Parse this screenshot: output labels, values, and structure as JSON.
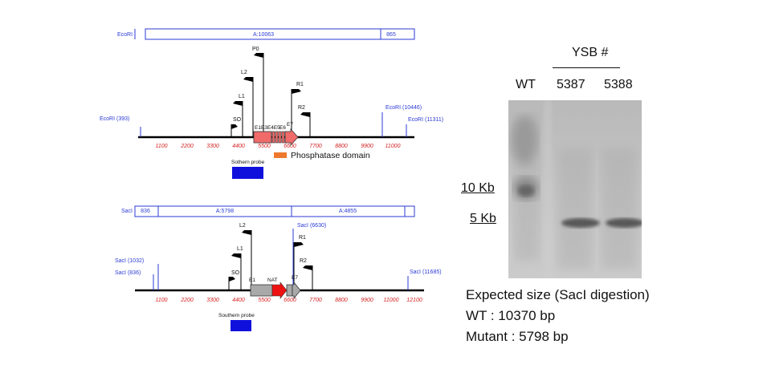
{
  "map_ecori": {
    "top_bar_label": "EcoRI",
    "top_bar_mid": "A:10063",
    "top_bar_right": "865",
    "site_left": "EcoRI (393)",
    "site_right1": "EcoRI (10446)",
    "site_right2": "EcoRI (11311)",
    "ticks": [
      "1100",
      "2200",
      "3300",
      "4400",
      "5500",
      "6600",
      "7700",
      "8800",
      "9900",
      "11000"
    ],
    "primers": [
      "P0",
      "L2",
      "L1",
      "SO",
      "R1",
      "R2"
    ],
    "exons": [
      "E1",
      "E3",
      "E4",
      "E5",
      "E6",
      "E7"
    ],
    "exon_combined": "E1E3E4E5",
    "domain_label": "Phosphatase domain",
    "probe_label": "Sothern probe"
  },
  "map_saci": {
    "top_bar_label": "SacI",
    "top_bar_left": "836",
    "top_bar_mid1": "A:5798",
    "top_bar_mid2": "A:4855",
    "site_left1": "SacI (1032)",
    "site_left2": "SacI (836)",
    "site_mid": "SacI (6630)",
    "site_right": "SacI (11685)",
    "ticks": [
      "1100",
      "2200",
      "3300",
      "4400",
      "5500",
      "6600",
      "7700",
      "8800",
      "9900",
      "11000",
      "12100"
    ],
    "primers": [
      "L2",
      "L1",
      "SO",
      "R1",
      "R2"
    ],
    "exons": [
      "E1",
      "NAT",
      "E7"
    ],
    "probe_label": "Southern probe"
  },
  "blot": {
    "header": "YSB #",
    "lanes": [
      "WT",
      "5387",
      "5388"
    ],
    "markers": [
      "10 Kb",
      "5 Kb"
    ],
    "caption_title": "Expected size (SacI digestion)",
    "caption_wt": "WT : 10370 bp",
    "caption_mutant": "Mutant : 5798 bp"
  },
  "colors": {
    "map_text": "#2b3bd6",
    "tick_text": "#d42020",
    "exon_fill": "#f06a6a",
    "domain_bar": "#ee7a2e",
    "probe_box": "#1010dd",
    "nat_arrow": "#ee1111",
    "e1_box": "#a9a9a9"
  }
}
